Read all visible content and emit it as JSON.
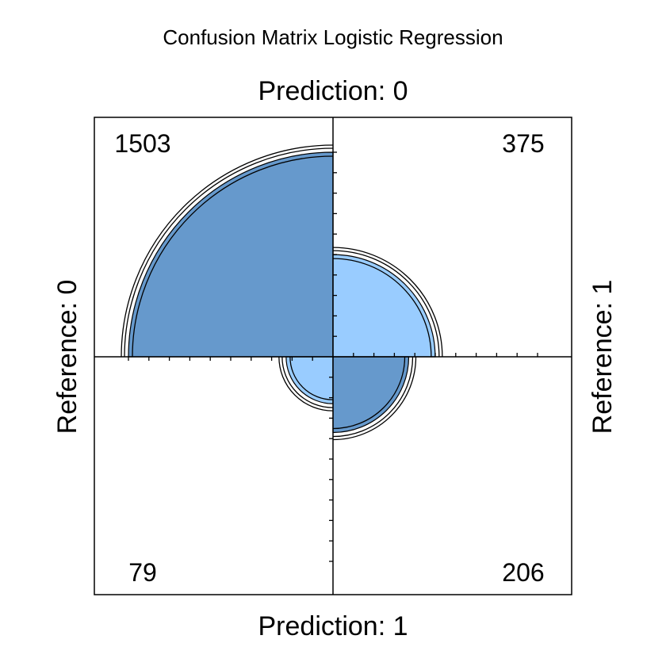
{
  "chart_data": {
    "type": "fourfold",
    "title": "Confusion Matrix Logistic Regression",
    "top_label": "Prediction: 0",
    "bottom_label": "Prediction: 1",
    "left_label": "Reference: 0",
    "right_label": "Reference: 1",
    "cells": [
      {
        "position": "top-left",
        "value": 1503,
        "color": "#6699CC"
      },
      {
        "position": "top-right",
        "value": 375,
        "color": "#99CCFF"
      },
      {
        "position": "bottom-left",
        "value": 79,
        "color": "#99CCFF"
      },
      {
        "position": "bottom-right",
        "value": 206,
        "color": "#6699CC"
      }
    ],
    "outline_color": "#000000"
  }
}
